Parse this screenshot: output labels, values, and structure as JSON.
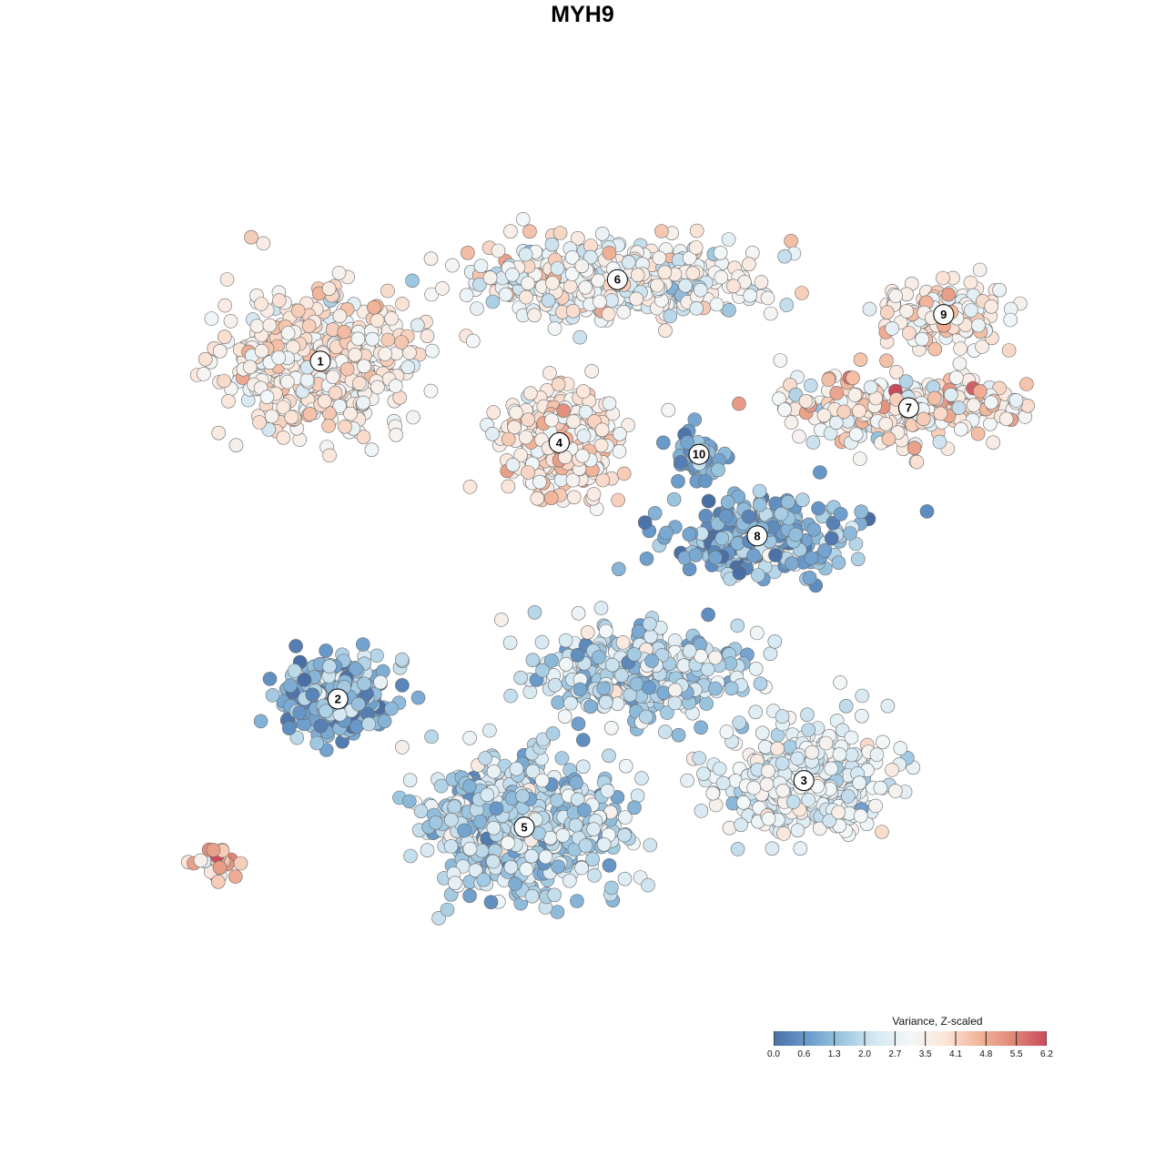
{
  "colors": {
    "scale": [
      "#4a6fa5",
      "#6a9bcb",
      "#9cc6e0",
      "#d6e8f2",
      "#f3f7f8",
      "#fbe6da",
      "#f2b69a",
      "#e08878",
      "#c94a5a"
    ],
    "point_stroke": "#6b6b6b"
  },
  "chart_data": {
    "type": "scatter",
    "title": "MYH9",
    "color_scale": {
      "title": "Variance, Z-scaled",
      "min": 0.0,
      "max": 6.2,
      "ticks": [
        "0.0",
        "0.6",
        "1.3",
        "2.0",
        "2.7",
        "3.5",
        "4.1",
        "4.8",
        "5.5",
        "6.2"
      ]
    },
    "clusters": [
      {
        "label": "1",
        "x": -45,
        "y": 38,
        "spread": [
          14,
          11
        ],
        "n": 520,
        "mean": 3.6,
        "sd": 0.55
      },
      {
        "label": "2",
        "x": -42,
        "y": -20,
        "spread": [
          8,
          6
        ],
        "n": 260,
        "mean": 1.2,
        "sd": 0.7
      },
      {
        "label": "3",
        "x": 38,
        "y": -34,
        "spread": [
          13,
          8
        ],
        "n": 380,
        "mean": 2.7,
        "sd": 0.55
      },
      {
        "label": "4",
        "x": -4,
        "y": 24,
        "spread": [
          9,
          8
        ],
        "n": 300,
        "mean": 3.7,
        "sd": 0.6
      },
      {
        "label": "5",
        "x": -10,
        "y": -42,
        "spread": [
          14,
          10
        ],
        "n": 680,
        "mean": 2.0,
        "sd": 0.7
      },
      {
        "label": "6",
        "x": 6,
        "y": 52,
        "spread": [
          22,
          6
        ],
        "n": 420,
        "mean": 3.0,
        "sd": 0.7
      },
      {
        "label": "7",
        "x": 56,
        "y": 30,
        "spread": [
          20,
          6
        ],
        "n": 260,
        "mean": 3.6,
        "sd": 0.8
      },
      {
        "label": "8",
        "x": 30,
        "y": 8,
        "spread": [
          14,
          6
        ],
        "n": 240,
        "mean": 1.1,
        "sd": 0.7
      },
      {
        "label": "9",
        "x": 62,
        "y": 46,
        "spread": [
          10,
          5
        ],
        "n": 140,
        "mean": 3.6,
        "sd": 0.55
      },
      {
        "label": "10",
        "x": 20,
        "y": 22,
        "spread": [
          4,
          4
        ],
        "n": 60,
        "mean": 1.0,
        "sd": 0.4
      },
      {
        "label": "",
        "x": 10,
        "y": -16,
        "spread": [
          16,
          7
        ],
        "n": 360,
        "mean": 2.0,
        "sd": 0.7
      },
      {
        "label": "",
        "x": -63,
        "y": -48,
        "spread": [
          4,
          3
        ],
        "n": 28,
        "mean": 4.6,
        "sd": 0.9
      }
    ]
  }
}
